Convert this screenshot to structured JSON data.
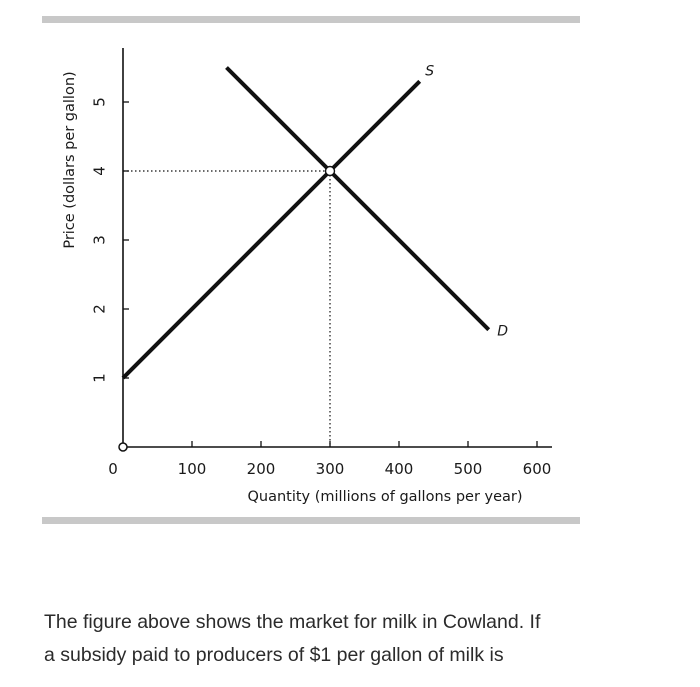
{
  "chart_data": {
    "type": "line",
    "title": "",
    "xlabel": "Quantity (millions of gallons per year)",
    "ylabel": "Price (dollars per gallon)",
    "xlim": [
      0,
      600
    ],
    "ylim": [
      0,
      5
    ],
    "origin_label": "0",
    "x_ticks": [
      "100",
      "200",
      "300",
      "400",
      "500",
      "600"
    ],
    "y_ticks": [
      "1",
      "2",
      "3",
      "4",
      "5"
    ],
    "series": [
      {
        "name": "S",
        "points": [
          [
            0,
            1
          ],
          [
            300,
            4
          ],
          [
            430,
            5.3
          ]
        ],
        "color": "#111111"
      },
      {
        "name": "D",
        "points": [
          [
            150,
            5.5
          ],
          [
            300,
            4
          ],
          [
            530,
            1.7
          ]
        ],
        "color": "#111111"
      }
    ],
    "equilibrium": {
      "x": 300,
      "y": 4
    },
    "grid": false,
    "legend": "none"
  },
  "question": {
    "line1": "The figure above shows the market for milk in Cowland. If",
    "line2": "a subsidy paid to producers of $1 per gallon of milk is"
  },
  "colors": {
    "rule": "#c8c8c8",
    "ink": "#111111",
    "text": "#2b2b2b"
  }
}
